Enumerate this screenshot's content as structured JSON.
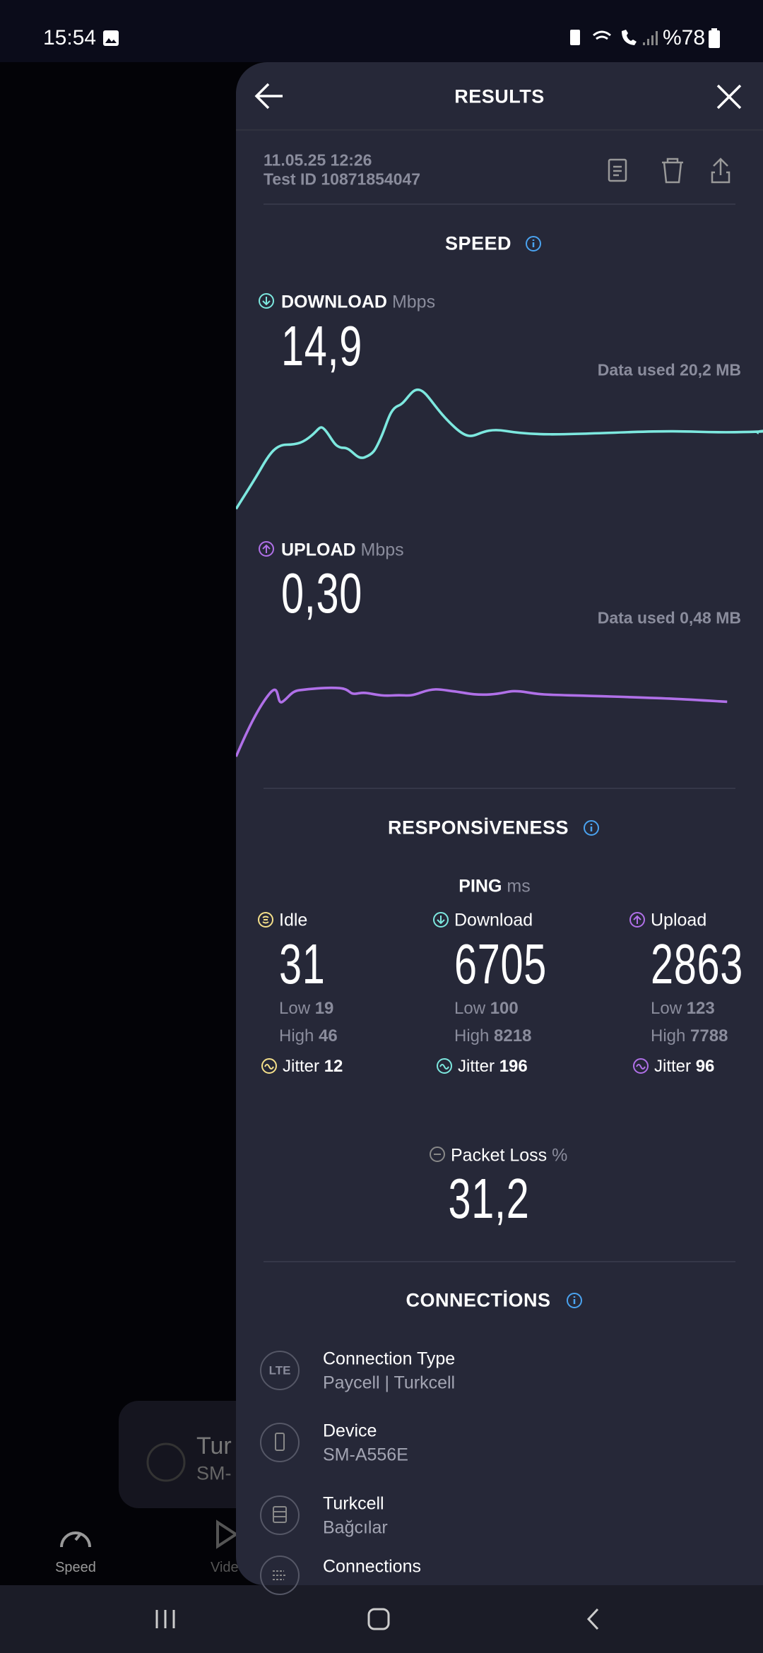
{
  "status_bar": {
    "time": "15:54",
    "battery": "%78"
  },
  "background": {
    "card_title": "Tur",
    "card_subtitle": "SM-",
    "nav_speed": "Speed",
    "nav_video": "Vide"
  },
  "header": {
    "title": "RESULTS"
  },
  "test": {
    "datetime": "11.05.25 12:26",
    "test_id": "Test ID 10871854047"
  },
  "speed": {
    "title": "SPEED",
    "download": {
      "label": "DOWNLOAD",
      "unit": "Mbps",
      "value": "14,9",
      "data_used": "Data used 20,2 MB"
    },
    "upload": {
      "label": "UPLOAD",
      "unit": "Mbps",
      "value": "0,30",
      "data_used": "Data used 0,48 MB"
    }
  },
  "responsiveness": {
    "title": "RESPONSİVENESS",
    "ping_label": "PING",
    "ping_unit": "ms",
    "columns": [
      {
        "name": "Idle",
        "value": "31",
        "low_label": "Low",
        "low": "19",
        "high_label": "High",
        "high": "46",
        "jitter_label": "Jitter",
        "jitter": "12"
      },
      {
        "name": "Download",
        "value": "6705",
        "low_label": "Low",
        "low": "100",
        "high_label": "High",
        "high": "8218",
        "jitter_label": "Jitter",
        "jitter": "196"
      },
      {
        "name": "Upload",
        "value": "2863",
        "low_label": "Low",
        "low": "123",
        "high_label": "High",
        "high": "7788",
        "jitter_label": "Jitter",
        "jitter": "96"
      }
    ],
    "packet_loss": {
      "label": "Packet Loss",
      "unit": "%",
      "value": "31,2"
    }
  },
  "connections": {
    "title": "CONNECTİONS",
    "items": [
      {
        "icon": "LTE",
        "title": "Connection Type",
        "subtitle": "Paycell | Turkcell"
      },
      {
        "title": "Device",
        "subtitle": "SM-A556E"
      },
      {
        "title": "Turkcell",
        "subtitle": "Bağcılar"
      },
      {
        "title": "Connections"
      }
    ]
  }
}
